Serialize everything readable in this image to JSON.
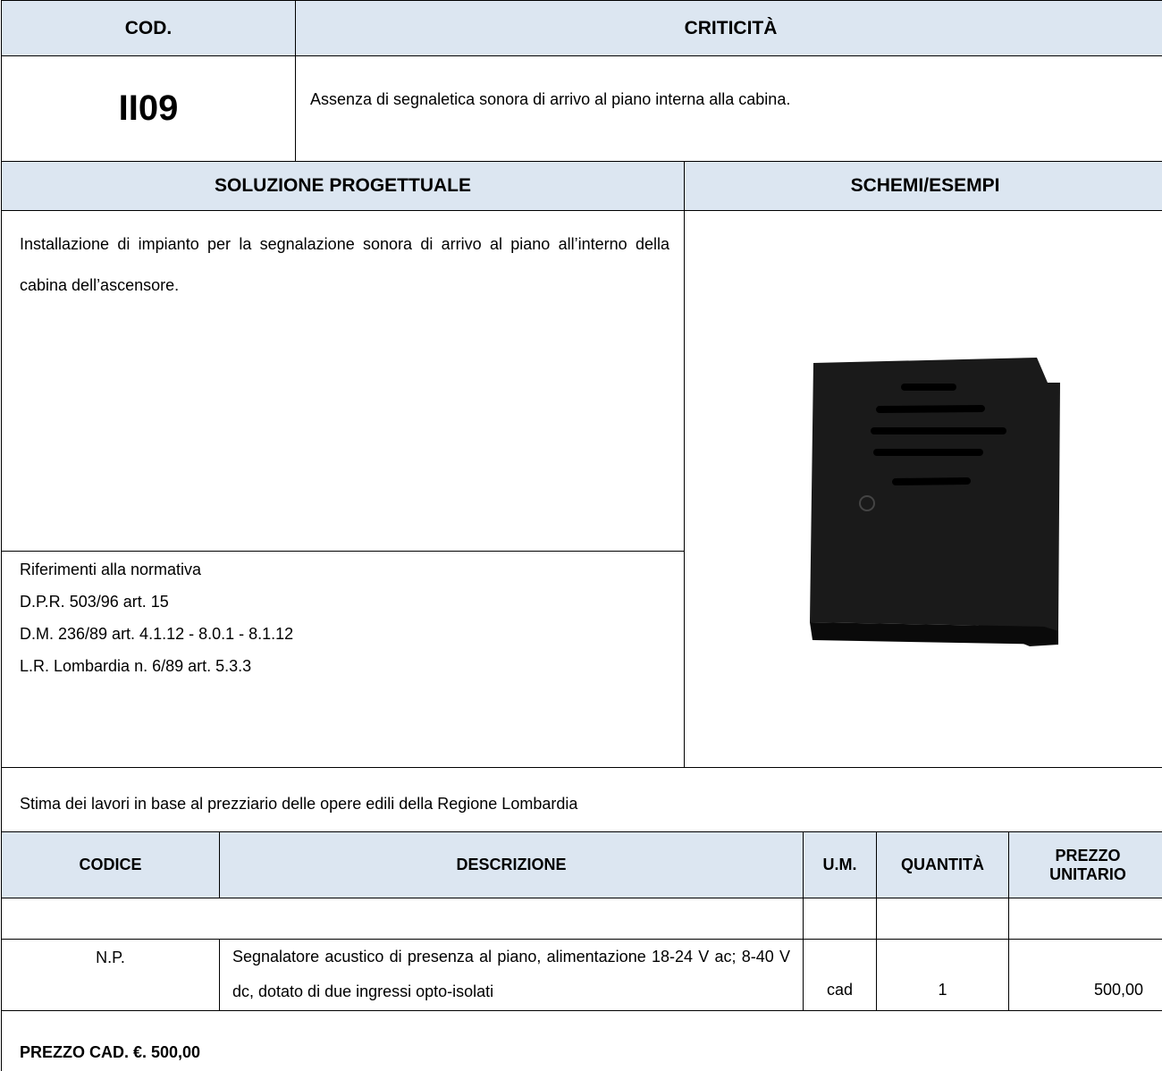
{
  "header": {
    "cod_label": "COD.",
    "criticita_label": "CRITICITÀ",
    "code": "II09",
    "criticita": "Assenza di segnaletica sonora di arrivo al piano interna alla cabina."
  },
  "section": {
    "soluzione_label": "SOLUZIONE PROGETTUALE",
    "schemi_label": "SCHEMI/ESEMPI",
    "soluzione": "Installazione di impianto per la segnalazione sonora di arrivo al piano all’interno della cabina dell’ascensore."
  },
  "normativa": {
    "title": "Riferimenti alla normativa",
    "items": [
      "D.P.R. 503/96 art. 15",
      "D.M. 236/89 art. 4.1.12 - 8.0.1 - 8.1.12",
      "L.R. Lombardia n. 6/89 art. 5.3.3"
    ]
  },
  "stima": "Stima dei lavori in base al prezziario delle opere edili della Regione Lombardia",
  "table": {
    "headers": [
      "CODICE",
      "DESCRIZIONE",
      "U.M.",
      "QUANTITÀ",
      "PREZZO UNITARIO"
    ],
    "rows": [
      [
        "N.P.",
        "Segnalatore acustico di presenza al piano, alimentazione 18-24 V ac; 8-40 V dc, dotato di due ingressi opto-isolati",
        "cad",
        "1",
        "500,00"
      ]
    ]
  },
  "total": "PREZZO CAD. €. 500,00"
}
